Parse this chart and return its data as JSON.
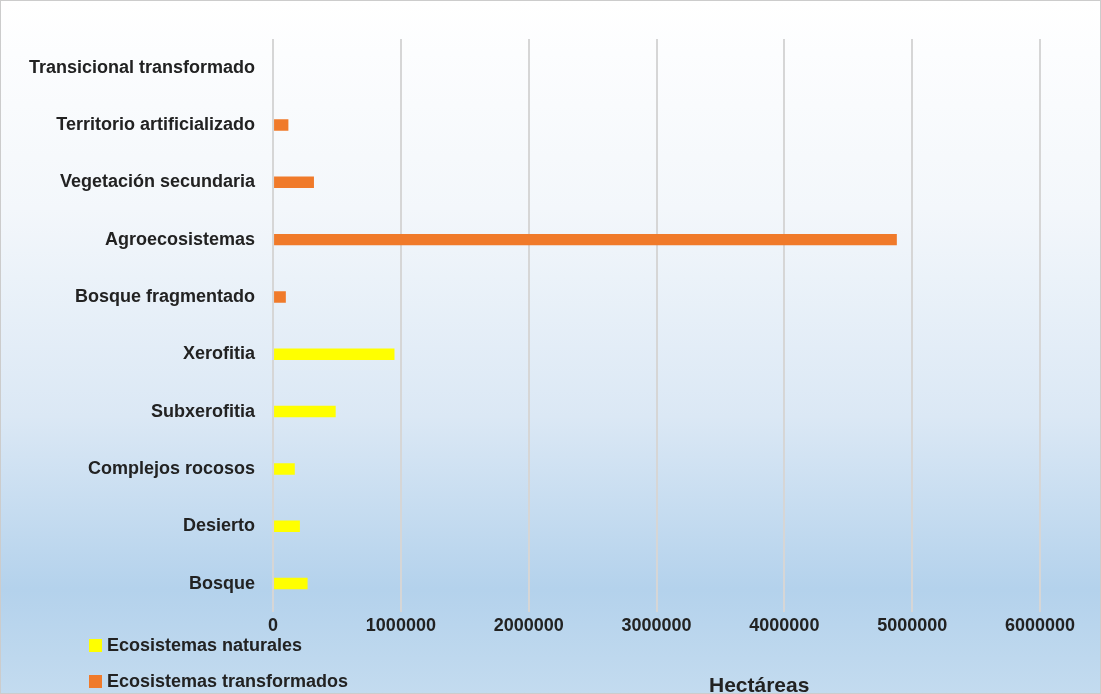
{
  "chart_data": {
    "type": "bar",
    "orientation": "horizontal",
    "xlabel": "Hectáreas",
    "categories": [
      "Transicional transformado",
      "Territorio artificializado",
      "Vegetación secundaria",
      "Agroecosistemas",
      "Bosque fragmentado",
      "Xerofitia",
      "Subxerofitia",
      "Complejos rocosos",
      "Desierto",
      "Bosque"
    ],
    "series": [
      {
        "name": "Ecosistemas naturales",
        "color": "#ffff00",
        "values": [
          null,
          null,
          null,
          null,
          null,
          950000,
          490000,
          170000,
          210000,
          270000
        ]
      },
      {
        "name": "Ecosistemas transformados",
        "color": "#f07a2a",
        "values": [
          0,
          120000,
          320000,
          4880000,
          100000,
          null,
          null,
          null,
          null,
          null
        ]
      }
    ],
    "xlim": [
      0,
      6000000
    ],
    "xticks": [
      0,
      1000000,
      2000000,
      3000000,
      4000000,
      5000000,
      6000000
    ],
    "grid": "x",
    "legend": "bottom left"
  }
}
